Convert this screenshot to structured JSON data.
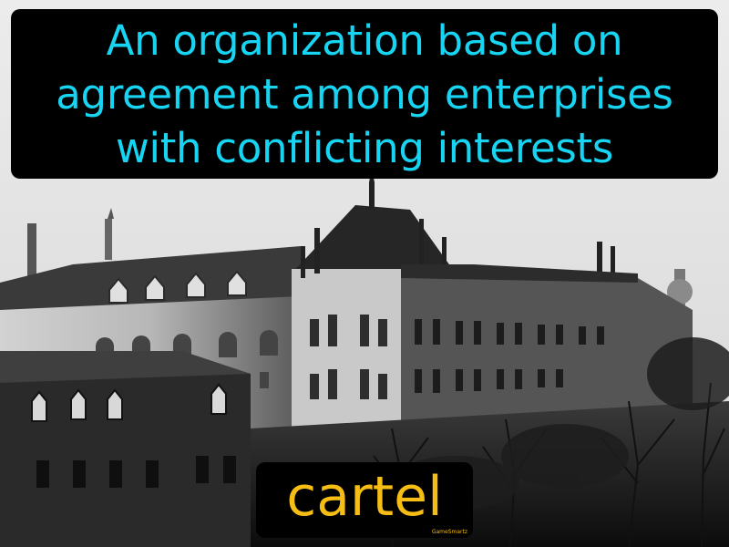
{
  "definition": {
    "lines": [
      "An organization based on",
      "agreement among enterprises",
      "with conflicting interests"
    ]
  },
  "term": "cartel",
  "brand": "GameSmartz",
  "photo": {
    "subject": "historic-building-photo",
    "colors": {
      "sky": "#e6e6e6",
      "roof": "#2f2f2f",
      "facade": "#bdbdbd",
      "trees": "#141414"
    }
  },
  "colors": {
    "definition_text": "#17d5f2",
    "term_text": "#f6bd14",
    "panel_bg": "#000000"
  }
}
